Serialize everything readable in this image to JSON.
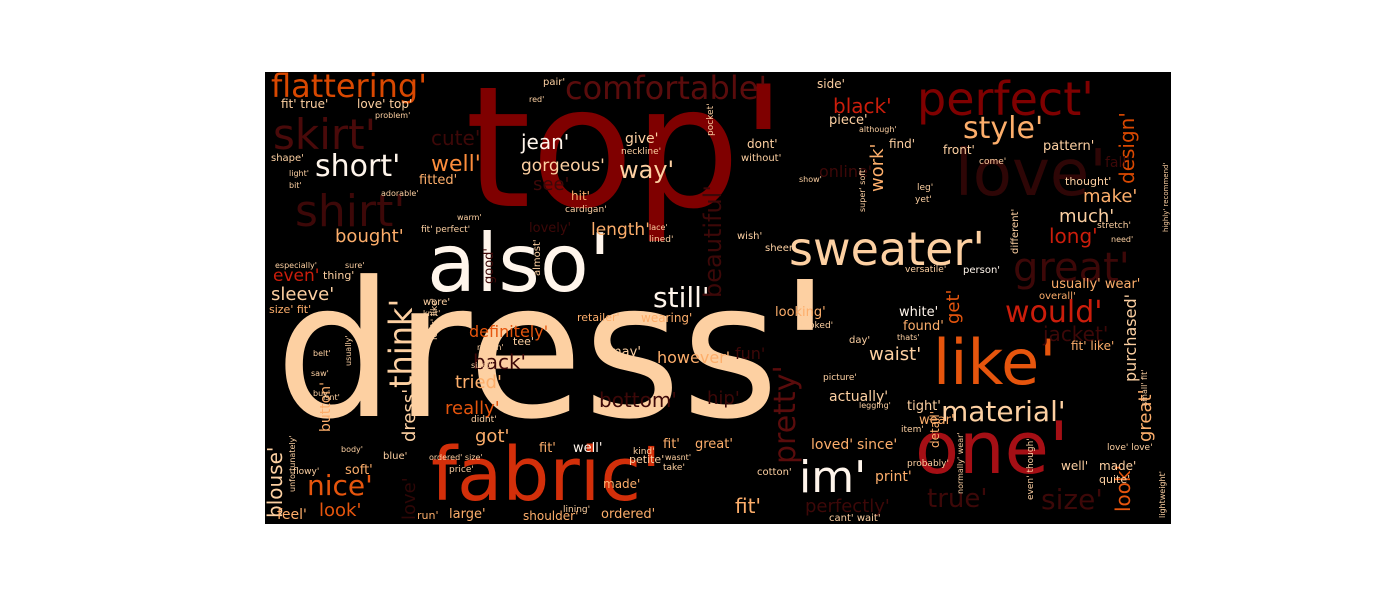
{
  "palette": {
    "background": "#000000",
    "near_white": "#fff5eb",
    "peach": "#fdd0a2",
    "light_orange": "#fdae6b",
    "orange": "#fd8d3c",
    "dark_orange": "#e6550d",
    "red_orange": "#d94801",
    "red": "#cb1d0b",
    "dark_red": "#a50f15",
    "maroon": "#7f0000",
    "deep_maroon": "#3d0000",
    "faint": "#220000"
  },
  "words": [
    {
      "text": "dress'",
      "color": "#fdd0a2"
    },
    {
      "text": "top'",
      "color": "#7f0000"
    },
    {
      "text": "also'",
      "color": "#fff5eb"
    },
    {
      "text": "fabric'",
      "color": "#d32f0a"
    },
    {
      "text": "one'",
      "color": "#a50f15"
    },
    {
      "text": "like'",
      "color": "#e6550d"
    },
    {
      "text": "perfect'",
      "color": "#7f0000"
    },
    {
      "text": "sweater'",
      "color": "#fdd0a2"
    },
    {
      "text": "flattering'",
      "color": "#d94801"
    },
    {
      "text": "comfortable'",
      "color": "#5a0c0c"
    },
    {
      "text": "skirt'",
      "color": "#4a0a0a"
    },
    {
      "text": "shirt'",
      "color": "#3d0808"
    },
    {
      "text": "love'",
      "color": "#2e0606"
    },
    {
      "text": "great'",
      "color": "#3d0808"
    },
    {
      "text": "im'",
      "color": "#fff5eb"
    },
    {
      "text": "short'",
      "color": "#fff5eb"
    },
    {
      "text": "style'",
      "color": "#fdae6b"
    },
    {
      "text": "would'",
      "color": "#cb1d0b"
    },
    {
      "text": "material'",
      "color": "#fdd0a2"
    },
    {
      "text": "pretty'",
      "color": "#5a0c0c"
    },
    {
      "text": "think'",
      "color": "#fdd0a2"
    },
    {
      "text": "nice'",
      "color": "#e6550d"
    },
    {
      "text": "still'",
      "color": "#fff5eb"
    },
    {
      "text": "well'",
      "color": "#fd8d3c"
    },
    {
      "text": "way'",
      "color": "#fdd0a2"
    },
    {
      "text": "jean'",
      "color": "#fff5eb"
    },
    {
      "text": "gorgeous'",
      "color": "#fdd0a2"
    },
    {
      "text": "black'",
      "color": "#cb1d0b"
    },
    {
      "text": "cute'",
      "color": "#3d0808"
    },
    {
      "text": "see'",
      "color": "#3d0808"
    },
    {
      "text": "bought'",
      "color": "#fdae6b"
    },
    {
      "text": "sleeve'",
      "color": "#fdd0a2"
    },
    {
      "text": "even'",
      "color": "#cb1d0b"
    },
    {
      "text": "definitely'",
      "color": "#e6550d"
    },
    {
      "text": "length'",
      "color": "#fdae6b"
    },
    {
      "text": "beautiful'",
      "color": "#3d0808"
    },
    {
      "text": "however'",
      "color": "#fdae6b"
    },
    {
      "text": "tried'",
      "color": "#fdae6b"
    },
    {
      "text": "really'",
      "color": "#e6550d"
    },
    {
      "text": "got'",
      "color": "#fdae6b"
    },
    {
      "text": "back'",
      "color": "#3d0808"
    },
    {
      "text": "bottom'",
      "color": "#3d0808"
    },
    {
      "text": "look'",
      "color": "#e6550d"
    },
    {
      "text": "blouse'",
      "color": "#fdd0a2"
    },
    {
      "text": "soft'",
      "color": "#fdae6b"
    },
    {
      "text": "feel'",
      "color": "#fdae6b"
    },
    {
      "text": "ordered'",
      "color": "#fdae6b"
    },
    {
      "text": "shoulder'",
      "color": "#fdae6b"
    },
    {
      "text": "run'",
      "color": "#fdae6b"
    },
    {
      "text": "large'",
      "color": "#fdae6b"
    },
    {
      "text": "made'",
      "color": "#fdae6b"
    },
    {
      "text": "fit'",
      "color": "#fdae6b"
    },
    {
      "text": "well'",
      "color": "#fff5eb"
    },
    {
      "text": "great'",
      "color": "#fdae6b"
    },
    {
      "text": "loved'",
      "color": "#fdae6b"
    },
    {
      "text": "since'",
      "color": "#fdae6b"
    },
    {
      "text": "waist'",
      "color": "#fdd0a2"
    },
    {
      "text": "actually'",
      "color": "#fdd0a2"
    },
    {
      "text": "tight'",
      "color": "#fdd0a2"
    },
    {
      "text": "wear'",
      "color": "#fdae6b"
    },
    {
      "text": "white'",
      "color": "#fff5eb"
    },
    {
      "text": "found'",
      "color": "#fdae6b"
    },
    {
      "text": "looking'",
      "color": "#fdae6b"
    },
    {
      "text": "work'",
      "color": "#fdae6b"
    },
    {
      "text": "make'",
      "color": "#fdae6b"
    },
    {
      "text": "much'",
      "color": "#fdd0a2"
    },
    {
      "text": "long'",
      "color": "#cb1d0b"
    },
    {
      "text": "design'",
      "color": "#d94801"
    },
    {
      "text": "pattern'",
      "color": "#fdd0a2"
    },
    {
      "text": "front'",
      "color": "#fdd0a2"
    },
    {
      "text": "find'",
      "color": "#fdd0a2"
    },
    {
      "text": "dont'",
      "color": "#fdd0a2"
    },
    {
      "text": "give'",
      "color": "#fdd0a2"
    },
    {
      "text": "side'",
      "color": "#fdd0a2"
    },
    {
      "text": "piece'",
      "color": "#fdd0a2"
    },
    {
      "text": "jacket'",
      "color": "#3d0808"
    },
    {
      "text": "usually' wear'",
      "color": "#fdae6b"
    },
    {
      "text": "purchased'",
      "color": "#fdd0a2"
    },
    {
      "text": "get'",
      "color": "#e6550d"
    },
    {
      "text": "detail'",
      "color": "#fdae6b"
    },
    {
      "text": "size'",
      "color": "#3d0808"
    },
    {
      "text": "true'",
      "color": "#3d0808"
    },
    {
      "text": "perfectly'",
      "color": "#3d0808"
    },
    {
      "text": "fit' like'",
      "color": "#fdae6b"
    },
    {
      "text": "fit' true'",
      "color": "#fdd0a2"
    },
    {
      "text": "love' top'",
      "color": "#fdd0a2"
    },
    {
      "text": "made'",
      "color": "#fdd0a2"
    },
    {
      "text": "well'",
      "color": "#fdd0a2"
    },
    {
      "text": "quite'",
      "color": "#fdd0a2"
    },
    {
      "text": "thought'",
      "color": "#fdd0a2"
    },
    {
      "text": "may'",
      "color": "#fdd0a2"
    },
    {
      "text": "tee'",
      "color": "#fdd0a2"
    },
    {
      "text": "wearing'",
      "color": "#fdae6b"
    },
    {
      "text": "button'",
      "color": "#fdae6b"
    },
    {
      "text": "print'",
      "color": "#fdae6b"
    },
    {
      "text": "fun'",
      "color": "#3d0808"
    },
    {
      "text": "hip'",
      "color": "#3d0808"
    },
    {
      "text": "online'",
      "color": "#3d0808"
    },
    {
      "text": "fall'",
      "color": "#3d0808"
    },
    {
      "text": "fitted'",
      "color": "#fdae6b"
    },
    {
      "text": "hit'",
      "color": "#fdae6b"
    },
    {
      "text": "lovely'",
      "color": "#3d0808"
    },
    {
      "text": "good'",
      "color": "#3d0808"
    },
    {
      "text": "thing'",
      "color": "#fdd0a2"
    },
    {
      "text": "size' fit'",
      "color": "#fdae6b"
    },
    {
      "text": "retailer'",
      "color": "#fdae6b"
    },
    {
      "text": "enough'",
      "color": "#fdd0a2"
    },
    {
      "text": "wore'",
      "color": "#fdd0a2"
    },
    {
      "text": "person'",
      "color": "#fff5eb"
    },
    {
      "text": "different'",
      "color": "#fdd0a2"
    },
    {
      "text": "overall'",
      "color": "#fdae6b"
    },
    {
      "text": "almost'",
      "color": "#fdd0a2"
    },
    {
      "text": "sheer'",
      "color": "#fdd0a2"
    },
    {
      "text": "wish'",
      "color": "#fdd0a2"
    },
    {
      "text": "price'",
      "color": "#fdd0a2"
    },
    {
      "text": "blue'",
      "color": "#fdd0a2"
    },
    {
      "text": "petite'",
      "color": "#fdd0a2"
    },
    {
      "text": "cotton'",
      "color": "#fdd0a2"
    },
    {
      "text": "take'",
      "color": "#fdd0a2"
    },
    {
      "text": "kind'",
      "color": "#fdd0a2"
    },
    {
      "text": "cant' wait'",
      "color": "#fdd0a2"
    },
    {
      "text": "lining'",
      "color": "#fdd0a2"
    },
    {
      "text": "picture'",
      "color": "#fdd0a2"
    },
    {
      "text": "item'",
      "color": "#fdd0a2"
    },
    {
      "text": "day'",
      "color": "#fdd0a2"
    },
    {
      "text": "versatile'",
      "color": "#fdd0a2"
    },
    {
      "text": "without'",
      "color": "#fdd0a2"
    },
    {
      "text": "show'",
      "color": "#fdd0a2"
    },
    {
      "text": "leg'",
      "color": "#fdd0a2"
    },
    {
      "text": "yet'",
      "color": "#fdd0a2"
    },
    {
      "text": "come'",
      "color": "#fdd0a2"
    },
    {
      "text": "cardigan'",
      "color": "#fdd0a2"
    },
    {
      "text": "pair'",
      "color": "#fdd0a2"
    },
    {
      "text": "problem'",
      "color": "#fdd0a2"
    },
    {
      "text": "adorable'",
      "color": "#fdd0a2"
    },
    {
      "text": "shape'",
      "color": "#fdd0a2"
    },
    {
      "text": "bit'",
      "color": "#fdd0a2"
    },
    {
      "text": "especially'",
      "color": "#fdd0a2"
    },
    {
      "text": "sure'",
      "color": "#fdd0a2"
    },
    {
      "text": "knit'",
      "color": "#fdd0a2"
    },
    {
      "text": "didnt'",
      "color": "#fdd0a2"
    },
    {
      "text": "return'",
      "color": "#fdd0a2"
    },
    {
      "text": "sized'",
      "color": "#fdd0a2"
    },
    {
      "text": "wasnt'",
      "color": "#fdd0a2"
    },
    {
      "text": "isnt'",
      "color": "#fdd0a2"
    },
    {
      "text": "saw'",
      "color": "#fdd0a2"
    },
    {
      "text": "buy'",
      "color": "#fdd0a2"
    },
    {
      "text": "belt'",
      "color": "#fdd0a2"
    },
    {
      "text": "body'",
      "color": "#fdd0a2"
    },
    {
      "text": "flowy'",
      "color": "#fdd0a2"
    },
    {
      "text": "probably'",
      "color": "#fdd0a2"
    },
    {
      "text": "even' though'",
      "color": "#fdd0a2"
    },
    {
      "text": "love' love'",
      "color": "#fdd0a2"
    },
    {
      "text": "small' fit'",
      "color": "#fdd0a2"
    },
    {
      "text": "lightweight'",
      "color": "#fdd0a2"
    },
    {
      "text": "stretch'",
      "color": "#fdd0a2"
    },
    {
      "text": "need'",
      "color": "#fdd0a2"
    },
    {
      "text": "look' like'",
      "color": "#fdd0a2"
    },
    {
      "text": "lined'",
      "color": "#fdd0a2"
    },
    {
      "text": "lace'",
      "color": "#fdd0a2"
    },
    {
      "text": "neckline'",
      "color": "#fdd0a2"
    },
    {
      "text": "super' soft'",
      "color": "#fdd0a2"
    },
    {
      "text": "looked'",
      "color": "#fdd0a2"
    },
    {
      "text": "thats'",
      "color": "#fdd0a2"
    },
    {
      "text": "legging'",
      "color": "#fdd0a2"
    },
    {
      "text": "although'",
      "color": "#fdd0a2"
    },
    {
      "text": "fit' perfect'",
      "color": "#fdd0a2"
    },
    {
      "text": "red'",
      "color": "#fdd0a2"
    },
    {
      "text": "ordered' size'",
      "color": "#fdd0a2"
    },
    {
      "text": "warm'",
      "color": "#fdd0a2"
    },
    {
      "text": "usually'",
      "color": "#fdd0a2"
    },
    {
      "text": "pocket'",
      "color": "#fdd0a2"
    },
    {
      "text": "highly' recommend'",
      "color": "#fdd0a2"
    },
    {
      "text": "normally' wear'",
      "color": "#fdd0a2"
    },
    {
      "text": "light'",
      "color": "#fdd0a2"
    },
    {
      "text": "unfortunately'",
      "color": "#fdd0a2"
    }
  ]
}
